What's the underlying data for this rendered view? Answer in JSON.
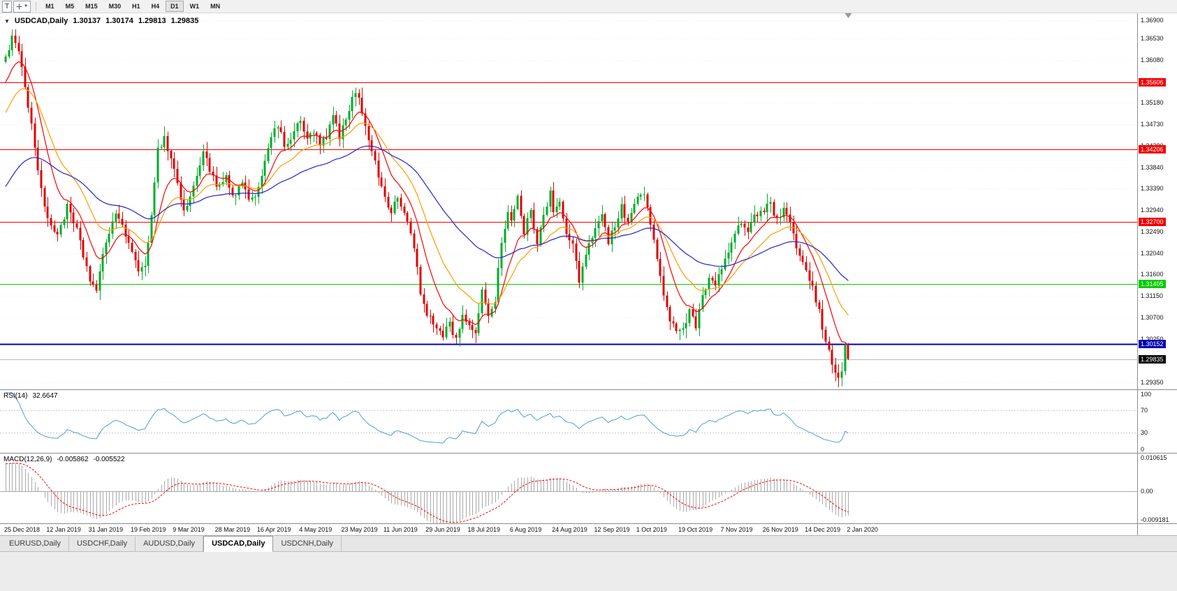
{
  "toolbar": {
    "tool_button": "T",
    "timeframes": [
      "M1",
      "M5",
      "M15",
      "M30",
      "H1",
      "H4",
      "D1",
      "W1",
      "MN"
    ],
    "active_timeframe": "D1"
  },
  "icons": {
    "collapse": "▼",
    "dropdown": "▼"
  },
  "chart": {
    "title": "USDCAD,Daily",
    "open": "1.30137",
    "high": "1.30174",
    "low": "1.29813",
    "close": "1.29835",
    "price_range": {
      "top": 1.3705,
      "bottom": 1.2919
    },
    "y_ticks": [
      "1.36900",
      "1.36530",
      "1.36080",
      "1.35630",
      "1.35180",
      "1.34730",
      "1.34280",
      "1.33840",
      "1.33390",
      "1.32940",
      "1.32490",
      "1.32040",
      "1.31600",
      "1.31150",
      "1.30700",
      "1.30250",
      "1.29350"
    ],
    "levels": [
      {
        "value": 1.35606,
        "label": "1.35606",
        "color": "#f00000",
        "width": 1
      },
      {
        "value": 1.34206,
        "label": "1.34206",
        "color": "#f00000",
        "width": 1
      },
      {
        "value": 1.327,
        "label": "1.32700",
        "color": "#f00000",
        "width": 1
      },
      {
        "value": 1.31405,
        "label": "1.31405",
        "color": "#00cc00",
        "width": 1
      },
      {
        "value": 1.30152,
        "label": "1.30152",
        "color": "#0000b4",
        "width": 2
      }
    ],
    "current_price": {
      "value": 1.29835,
      "label": "1.29835",
      "color": "#000000"
    }
  },
  "rsi": {
    "label": "RSI(14)",
    "value": "32.6647",
    "ticks": [
      "100",
      "70",
      "30",
      "0"
    ]
  },
  "macd": {
    "label": "MACD(12,26,9)",
    "value_main": "-0.005862",
    "value_signal": "-0.005522",
    "ticks": [
      "0.010615",
      "0.00",
      "-0.009181"
    ]
  },
  "tabs": [
    {
      "label": "EURUSD,Daily",
      "active": false
    },
    {
      "label": "USDCHF,Daily",
      "active": false
    },
    {
      "label": "AUDUSD,Daily",
      "active": false
    },
    {
      "label": "USDCAD,Daily",
      "active": true
    },
    {
      "label": "USDCNH,Daily",
      "active": false
    }
  ],
  "chart_data": {
    "type": "candlestick",
    "symbol": "USDCAD",
    "timeframe": "Daily",
    "candle_count": 261,
    "visible_price_range": [
      1.2919,
      1.3705
    ],
    "anchors": [
      [
        0,
        1.3615
      ],
      [
        2,
        1.3655
      ],
      [
        5,
        1.36
      ],
      [
        8,
        1.347
      ],
      [
        11,
        1.334
      ],
      [
        13,
        1.327
      ],
      [
        16,
        1.3245
      ],
      [
        19,
        1.33
      ],
      [
        22,
        1.325
      ],
      [
        26,
        1.315
      ],
      [
        28,
        1.3125
      ],
      [
        31,
        1.323
      ],
      [
        34,
        1.329
      ],
      [
        37,
        1.324
      ],
      [
        39,
        1.3215
      ],
      [
        41,
        1.316
      ],
      [
        43,
        1.3175
      ],
      [
        45,
        1.329
      ],
      [
        47,
        1.342
      ],
      [
        49,
        1.3445
      ],
      [
        52,
        1.338
      ],
      [
        55,
        1.329
      ],
      [
        58,
        1.334
      ],
      [
        61,
        1.342
      ],
      [
        63,
        1.338
      ],
      [
        65,
        1.334
      ],
      [
        68,
        1.336
      ],
      [
        70,
        1.332
      ],
      [
        73,
        1.335
      ],
      [
        75,
        1.331
      ],
      [
        78,
        1.334
      ],
      [
        81,
        1.343
      ],
      [
        84,
        1.347
      ],
      [
        86,
        1.343
      ],
      [
        88,
        1.3445
      ],
      [
        91,
        1.348
      ],
      [
        93,
        1.344
      ],
      [
        95,
        1.346
      ],
      [
        97,
        1.343
      ],
      [
        99,
        1.3445
      ],
      [
        101,
        1.349
      ],
      [
        103,
        1.345
      ],
      [
        105,
        1.348
      ],
      [
        108,
        1.3545
      ],
      [
        110,
        1.35
      ],
      [
        113,
        1.342
      ],
      [
        116,
        1.334
      ],
      [
        119,
        1.329
      ],
      [
        121,
        1.332
      ],
      [
        124,
        1.327
      ],
      [
        126,
        1.322
      ],
      [
        128,
        1.312
      ],
      [
        130,
        1.3074
      ],
      [
        133,
        1.305
      ],
      [
        135,
        1.3035
      ],
      [
        137,
        1.306
      ],
      [
        139,
        1.3022
      ],
      [
        141,
        1.308
      ],
      [
        143,
        1.305
      ],
      [
        145,
        1.303
      ],
      [
        147,
        1.3135
      ],
      [
        149,
        1.307
      ],
      [
        151,
        1.311
      ],
      [
        153,
        1.323
      ],
      [
        155,
        1.329
      ],
      [
        156,
        1.327
      ],
      [
        158,
        1.332
      ],
      [
        160,
        1.325
      ],
      [
        162,
        1.329
      ],
      [
        164,
        1.323
      ],
      [
        166,
        1.329
      ],
      [
        168,
        1.333
      ],
      [
        169,
        1.329
      ],
      [
        171,
        1.331
      ],
      [
        173,
        1.324
      ],
      [
        175,
        1.323
      ],
      [
        177,
        1.314
      ],
      [
        179,
        1.32
      ],
      [
        182,
        1.326
      ],
      [
        184,
        1.329
      ],
      [
        186,
        1.323
      ],
      [
        188,
        1.326
      ],
      [
        190,
        1.33
      ],
      [
        192,
        1.327
      ],
      [
        195,
        1.332
      ],
      [
        197,
        1.333
      ],
      [
        199,
        1.327
      ],
      [
        201,
        1.319
      ],
      [
        203,
        1.311
      ],
      [
        205,
        1.307
      ],
      [
        207,
        1.305
      ],
      [
        209,
        1.3042
      ],
      [
        211,
        1.309
      ],
      [
        213,
        1.3055
      ],
      [
        215,
        1.311
      ],
      [
        217,
        1.316
      ],
      [
        219,
        1.314
      ],
      [
        221,
        1.317
      ],
      [
        223,
        1.321
      ],
      [
        225,
        1.324
      ],
      [
        227,
        1.327
      ],
      [
        229,
        1.325
      ],
      [
        231,
        1.3285
      ],
      [
        234,
        1.329
      ],
      [
        236,
        1.331
      ],
      [
        238,
        1.327
      ],
      [
        240,
        1.3295
      ],
      [
        242,
        1.326
      ],
      [
        244,
        1.322
      ],
      [
        247,
        1.3165
      ],
      [
        249,
        1.313
      ],
      [
        251,
        1.308
      ],
      [
        253,
        1.302
      ],
      [
        255,
        1.2975
      ],
      [
        257,
        1.295
      ],
      [
        258,
        1.2952
      ],
      [
        259,
        1.3012
      ],
      [
        260,
        1.29835
      ]
    ],
    "prehistory": {
      "bars": 55,
      "from": 1.298,
      "to": 1.36
    },
    "forced_candles": [
      {
        "i": 259,
        "o": 1.2958,
        "h": 1.3017,
        "l": 1.295,
        "c": 1.3012
      },
      {
        "i": 260,
        "o": 1.30137,
        "h": 1.30174,
        "l": 1.29813,
        "c": 1.29835
      }
    ],
    "noise": {
      "seed": 1234,
      "close_jitter": 0.0016,
      "wick": 0.0018
    },
    "up_color": "#00ad2b",
    "down_color": "#e00404",
    "moving_averages": [
      {
        "period": 10,
        "color": "#ff0000"
      },
      {
        "period": 21,
        "color": "#ff9c00"
      },
      {
        "period": 55,
        "color": "#2222cc"
      }
    ],
    "rsi": {
      "period": 14,
      "color": "#4a9fd8",
      "levels": [
        70,
        30
      ],
      "range": [
        0,
        100
      ]
    },
    "macd": {
      "fast": 12,
      "slow": 26,
      "signal_period": 9,
      "histogram_color": "#a9a9a9",
      "signal_color": "#ff0000",
      "range": [
        -0.009181,
        0.010615
      ]
    },
    "x_axis_labels": [
      "25 Dec 2018",
      "12 Jan 2019",
      "31 Jan 2019",
      "19 Feb 2019",
      "9 Mar 2019",
      "28 Mar 2019",
      "16 Apr 2019",
      "4 May 2019",
      "23 May 2019",
      "11 Jun 2019",
      "29 Jun 2019",
      "18 Jul 2019",
      "6 Aug 2019",
      "24 Aug 2019",
      "12 Sep 2019",
      "1 Oct 2019",
      "19 Oct 2019",
      "7 Nov 2019",
      "26 Nov 2019",
      "14 Dec 2019",
      "2 Jan 2020"
    ],
    "label_every_n_bars": 13
  }
}
